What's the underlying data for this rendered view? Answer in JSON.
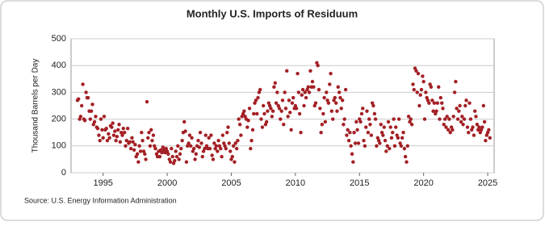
{
  "chart_data": {
    "type": "scatter",
    "title": "Monthly U.S. Imports of Residuum",
    "y_label": "Thousand Barrels per Day",
    "source": "Source: U.S. Energy Information Administration",
    "color": "#a31f24",
    "grid": true,
    "xlim": [
      1992.5,
      2025.5
    ],
    "xticks": [
      1995,
      2000,
      2005,
      2010,
      2015,
      2020,
      2025
    ],
    "ylim": [
      0,
      500
    ],
    "yticks": [
      0,
      100,
      200,
      300,
      400,
      500
    ],
    "x": [
      1993.0,
      1993.08,
      1993.17,
      1993.25,
      1993.33,
      1993.42,
      1993.5,
      1993.58,
      1993.67,
      1993.75,
      1993.83,
      1993.92,
      1994.0,
      1994.08,
      1994.17,
      1994.25,
      1994.33,
      1994.42,
      1994.5,
      1994.58,
      1994.67,
      1994.75,
      1994.83,
      1994.92,
      1995.0,
      1995.08,
      1995.17,
      1995.25,
      1995.33,
      1995.42,
      1995.5,
      1995.58,
      1995.67,
      1995.75,
      1995.83,
      1995.92,
      1996.0,
      1996.08,
      1996.17,
      1996.25,
      1996.33,
      1996.42,
      1996.5,
      1996.58,
      1996.67,
      1996.75,
      1996.83,
      1996.92,
      1997.0,
      1997.08,
      1997.17,
      1997.25,
      1997.33,
      1997.42,
      1997.5,
      1997.58,
      1997.67,
      1997.75,
      1997.83,
      1997.92,
      1998.0,
      1998.08,
      1998.17,
      1998.25,
      1998.33,
      1998.42,
      1998.5,
      1998.58,
      1998.67,
      1998.75,
      1998.83,
      1998.92,
      1999.0,
      1999.08,
      1999.17,
      1999.25,
      1999.33,
      1999.42,
      1999.5,
      1999.58,
      1999.67,
      1999.75,
      1999.83,
      1999.92,
      2000.0,
      2000.08,
      2000.17,
      2000.25,
      2000.33,
      2000.42,
      2000.5,
      2000.58,
      2000.67,
      2000.75,
      2000.83,
      2000.92,
      2001.0,
      2001.08,
      2001.17,
      2001.25,
      2001.33,
      2001.42,
      2001.5,
      2001.58,
      2001.67,
      2001.75,
      2001.83,
      2001.92,
      2002.0,
      2002.08,
      2002.17,
      2002.25,
      2002.33,
      2002.42,
      2002.5,
      2002.58,
      2002.67,
      2002.75,
      2002.83,
      2002.92,
      2003.0,
      2003.08,
      2003.17,
      2003.25,
      2003.33,
      2003.42,
      2003.5,
      2003.58,
      2003.67,
      2003.75,
      2003.83,
      2003.92,
      2004.0,
      2004.08,
      2004.17,
      2004.25,
      2004.33,
      2004.42,
      2004.5,
      2004.58,
      2004.67,
      2004.75,
      2004.83,
      2004.92,
      2005.0,
      2005.08,
      2005.17,
      2005.25,
      2005.33,
      2005.42,
      2005.5,
      2005.58,
      2005.67,
      2005.75,
      2005.83,
      2005.92,
      2006.0,
      2006.08,
      2006.17,
      2006.25,
      2006.33,
      2006.42,
      2006.5,
      2006.58,
      2006.67,
      2006.75,
      2006.83,
      2006.92,
      2007.0,
      2007.08,
      2007.17,
      2007.25,
      2007.33,
      2007.42,
      2007.5,
      2007.58,
      2007.67,
      2007.75,
      2007.83,
      2007.92,
      2008.0,
      2008.08,
      2008.17,
      2008.25,
      2008.33,
      2008.42,
      2008.5,
      2008.58,
      2008.67,
      2008.75,
      2008.83,
      2008.92,
      2009.0,
      2009.08,
      2009.17,
      2009.25,
      2009.33,
      2009.42,
      2009.5,
      2009.58,
      2009.67,
      2009.75,
      2009.83,
      2009.92,
      2010.0,
      2010.08,
      2010.17,
      2010.25,
      2010.33,
      2010.42,
      2010.5,
      2010.58,
      2010.67,
      2010.75,
      2010.83,
      2010.92,
      2011.0,
      2011.08,
      2011.17,
      2011.25,
      2011.33,
      2011.42,
      2011.5,
      2011.58,
      2011.67,
      2011.75,
      2011.83,
      2011.92,
      2012.0,
      2012.08,
      2012.17,
      2012.25,
      2012.33,
      2012.42,
      2012.5,
      2012.58,
      2012.67,
      2012.75,
      2012.83,
      2012.92,
      2013.0,
      2013.08,
      2013.17,
      2013.25,
      2013.33,
      2013.42,
      2013.5,
      2013.58,
      2013.67,
      2013.75,
      2013.83,
      2013.92,
      2014.0,
      2014.08,
      2014.17,
      2014.25,
      2014.33,
      2014.42,
      2014.5,
      2014.58,
      2014.67,
      2014.75,
      2014.83,
      2014.92,
      2015.0,
      2015.08,
      2015.17,
      2015.25,
      2015.33,
      2015.42,
      2015.5,
      2015.58,
      2015.67,
      2015.75,
      2015.83,
      2015.92,
      2016.0,
      2016.08,
      2016.17,
      2016.25,
      2016.33,
      2016.42,
      2016.5,
      2016.58,
      2016.67,
      2016.75,
      2016.83,
      2016.92,
      2017.0,
      2017.08,
      2017.17,
      2017.25,
      2017.33,
      2017.42,
      2017.5,
      2017.58,
      2017.67,
      2017.75,
      2017.83,
      2017.92,
      2018.0,
      2018.08,
      2018.17,
      2018.25,
      2018.33,
      2018.42,
      2018.5,
      2018.58,
      2018.67,
      2018.75,
      2018.83,
      2018.92,
      2019.0,
      2019.08,
      2019.17,
      2019.25,
      2019.33,
      2019.42,
      2019.5,
      2019.58,
      2019.67,
      2019.75,
      2019.83,
      2019.92,
      2020.0,
      2020.08,
      2020.17,
      2020.25,
      2020.33,
      2020.42,
      2020.5,
      2020.58,
      2020.67,
      2020.75,
      2020.83,
      2020.92,
      2021.0,
      2021.08,
      2021.17,
      2021.25,
      2021.33,
      2021.42,
      2021.5,
      2021.58,
      2021.67,
      2021.75,
      2021.83,
      2021.92,
      2022.0,
      2022.08,
      2022.17,
      2022.25,
      2022.33,
      2022.42,
      2022.5,
      2022.58,
      2022.67,
      2022.75,
      2022.83,
      2022.92,
      2023.0,
      2023.08,
      2023.17,
      2023.25,
      2023.33,
      2023.42,
      2023.5,
      2023.58,
      2023.67,
      2023.75,
      2023.83,
      2023.92,
      2024.0,
      2024.08,
      2024.17,
      2024.25,
      2024.33,
      2024.42,
      2024.5,
      2024.58,
      2024.67,
      2024.75,
      2024.83,
      2024.92,
      2025.0,
      2025.08,
      2025.17
    ],
    "values": [
      270,
      275,
      200,
      210,
      250,
      330,
      200,
      195,
      300,
      280,
      280,
      230,
      200,
      230,
      255,
      180,
      190,
      210,
      170,
      165,
      140,
      120,
      200,
      160,
      130,
      210,
      160,
      165,
      120,
      145,
      130,
      175,
      170,
      185,
      140,
      155,
      120,
      135,
      160,
      180,
      115,
      150,
      140,
      165,
      150,
      100,
      120,
      165,
      110,
      115,
      90,
      130,
      115,
      85,
      105,
      60,
      70,
      40,
      100,
      80,
      150,
      120,
      80,
      70,
      50,
      265,
      130,
      150,
      100,
      160,
      120,
      140,
      100,
      90,
      70,
      60,
      80,
      60,
      85,
      75,
      95,
      85,
      75,
      90,
      80,
      70,
      50,
      40,
      90,
      60,
      35,
      45,
      80,
      60,
      100,
      50,
      70,
      90,
      120,
      150,
      190,
      155,
      40,
      100,
      110,
      140,
      100,
      130,
      80,
      90,
      50,
      70,
      100,
      120,
      95,
      150,
      110,
      60,
      80,
      90,
      140,
      100,
      90,
      130,
      90,
      140,
      65,
      50,
      110,
      90,
      100,
      80,
      120,
      100,
      90,
      60,
      140,
      110,
      100,
      90,
      150,
      170,
      110,
      80,
      50,
      60,
      100,
      40,
      110,
      90,
      120,
      200,
      180,
      140,
      210,
      220,
      230,
      210,
      200,
      170,
      195,
      240,
      90,
      120,
      160,
      220,
      260,
      270,
      220,
      280,
      300,
      310,
      200,
      170,
      250,
      220,
      180,
      190,
      230,
      260,
      250,
      240,
      210,
      230,
      320,
      335,
      260,
      300,
      250,
      240,
      200,
      230,
      270,
      180,
      300,
      240,
      380,
      210,
      270,
      225,
      160,
      260,
      280,
      240,
      250,
      240,
      370,
      300,
      220,
      150,
      290,
      310,
      250,
      300,
      280,
      310,
      320,
      300,
      380,
      320,
      340,
      320,
      250,
      260,
      410,
      400,
      310,
      240,
      150,
      180,
      220,
      280,
      190,
      300,
      270,
      260,
      330,
      370,
      230,
      200,
      270,
      280,
      260,
      230,
      320,
      300,
      280,
      240,
      270,
      180,
      200,
      310,
      140,
      160,
      120,
      150,
      100,
      70,
      40,
      150,
      110,
      190,
      160,
      110,
      200,
      190,
      220,
      240,
      120,
      100,
      170,
      230,
      150,
      200,
      180,
      140,
      260,
      250,
      220,
      200,
      100,
      130,
      120,
      110,
      180,
      150,
      140,
      170,
      120,
      80,
      100,
      190,
      90,
      170,
      130,
      150,
      200,
      100,
      170,
      140,
      130,
      200,
      110,
      100,
      130,
      150,
      90,
      60,
      40,
      100,
      210,
      190,
      200,
      180,
      330,
      310,
      390,
      380,
      300,
      370,
      250,
      290,
      310,
      360,
      340,
      200,
      300,
      280,
      270,
      260,
      330,
      320,
      270,
      230,
      260,
      220,
      230,
      260,
      320,
      200,
      280,
      260,
      240,
      180,
      200,
      170,
      210,
      160,
      200,
      150,
      170,
      160,
      210,
      300,
      340,
      240,
      200,
      230,
      250,
      190,
      210,
      180,
      200,
      250,
      270,
      170,
      150,
      260,
      200,
      160,
      170,
      140,
      230,
      210,
      180,
      160,
      170,
      150,
      160,
      170,
      250,
      190,
      120,
      140,
      150,
      160,
      130
    ]
  }
}
